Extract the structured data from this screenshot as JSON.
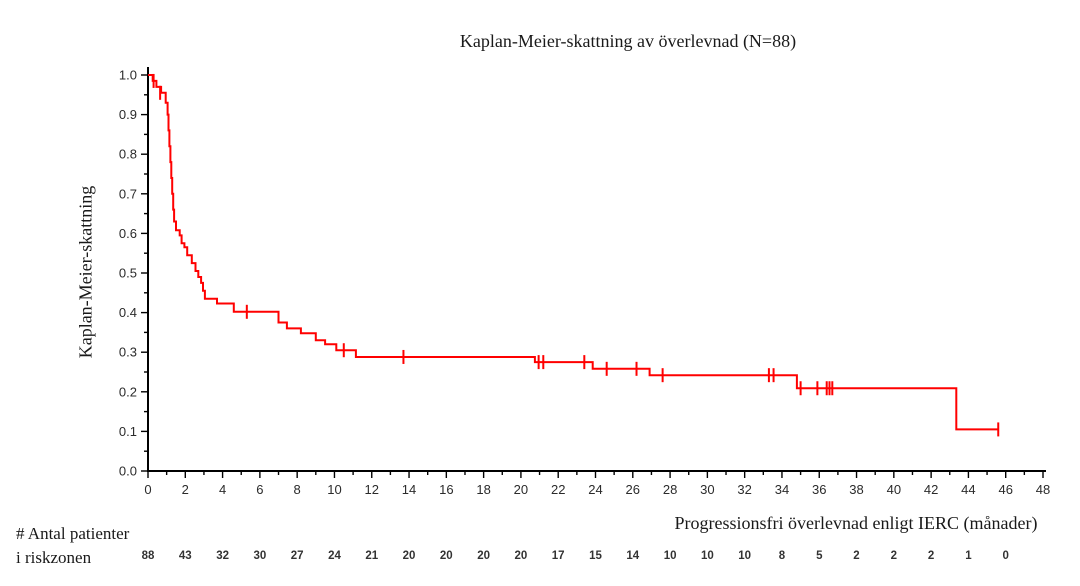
{
  "chart_data": {
    "type": "line",
    "subtype": "kaplan_meier_step_curve",
    "title": "Kaplan-Meier-skattning av överlevnad (N=88)",
    "xlabel": "Progressionsfri överlevnad enligt IERC (månader)",
    "ylabel": "Kaplan-Meier-skattning",
    "n_total": 88,
    "xlim": [
      0,
      48
    ],
    "x_tick_step": 2,
    "x_minor_step": 1,
    "ylim": [
      0.0,
      1.0
    ],
    "y_tick_step": 0.1,
    "y_minor_step": 0.05,
    "grid": false,
    "legend": "none",
    "line_color": "#ff0000",
    "axis_color": "#000000",
    "tick_label_color": "#2b2b2b",
    "end_time": 45.6,
    "steps": [
      [
        0,
        1.0
      ],
      [
        0.25,
        0.985
      ],
      [
        0.45,
        0.97
      ],
      [
        0.7,
        0.955
      ],
      [
        0.95,
        0.93
      ],
      [
        1.05,
        0.9
      ],
      [
        1.1,
        0.86
      ],
      [
        1.15,
        0.82
      ],
      [
        1.2,
        0.78
      ],
      [
        1.25,
        0.74
      ],
      [
        1.3,
        0.7
      ],
      [
        1.35,
        0.66
      ],
      [
        1.4,
        0.63
      ],
      [
        1.5,
        0.608
      ],
      [
        1.7,
        0.595
      ],
      [
        1.8,
        0.575
      ],
      [
        1.95,
        0.565
      ],
      [
        2.1,
        0.545
      ],
      [
        2.35,
        0.525
      ],
      [
        2.55,
        0.505
      ],
      [
        2.7,
        0.49
      ],
      [
        2.85,
        0.475
      ],
      [
        2.95,
        0.455
      ],
      [
        3.05,
        0.435
      ],
      [
        3.7,
        0.423
      ],
      [
        4.6,
        0.402
      ],
      [
        7.0,
        0.375
      ],
      [
        7.45,
        0.36
      ],
      [
        8.2,
        0.348
      ],
      [
        9.0,
        0.33
      ],
      [
        9.5,
        0.32
      ],
      [
        10.1,
        0.305
      ],
      [
        11.15,
        0.288
      ],
      [
        20.75,
        0.275
      ],
      [
        23.85,
        0.258
      ],
      [
        26.9,
        0.242
      ],
      [
        34.8,
        0.209
      ],
      [
        43.35,
        0.105
      ]
    ],
    "censor_marks": [
      [
        0.3,
        0.985
      ],
      [
        0.65,
        0.955
      ],
      [
        5.3,
        0.402
      ],
      [
        10.5,
        0.305
      ],
      [
        13.7,
        0.288
      ],
      [
        20.95,
        0.275
      ],
      [
        21.2,
        0.275
      ],
      [
        23.4,
        0.275
      ],
      [
        24.6,
        0.258
      ],
      [
        26.2,
        0.258
      ],
      [
        27.6,
        0.242
      ],
      [
        33.3,
        0.242
      ],
      [
        33.55,
        0.242
      ],
      [
        35.0,
        0.209
      ],
      [
        35.9,
        0.209
      ],
      [
        36.4,
        0.209
      ],
      [
        36.55,
        0.209
      ],
      [
        36.7,
        0.209
      ],
      [
        45.6,
        0.105
      ]
    ],
    "risk_table": {
      "label_line1": "# Antal patienter",
      "label_line2": "i riskzonen",
      "times": [
        0,
        2,
        4,
        6,
        8,
        10,
        12,
        14,
        16,
        18,
        20,
        22,
        24,
        26,
        28,
        30,
        32,
        34,
        36,
        38,
        40,
        42,
        44,
        46
      ],
      "counts": [
        88,
        43,
        32,
        30,
        27,
        24,
        21,
        20,
        20,
        20,
        20,
        17,
        15,
        14,
        10,
        10,
        10,
        8,
        5,
        2,
        2,
        2,
        1,
        0
      ]
    }
  }
}
